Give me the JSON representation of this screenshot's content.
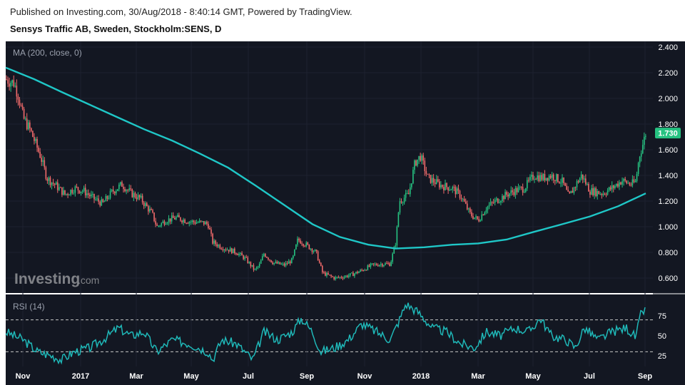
{
  "header": {
    "published": "Published on Investing.com, 30/Aug/2018 - 8:40:14 GMT, Powered by TradingView.",
    "instrument": "Sensys Traffic AB, Sweden, Stockholm:SENS, D"
  },
  "watermark": {
    "brand": "Investing",
    "suffix": ".com"
  },
  "colors": {
    "background": "#131722",
    "up": "#26c281",
    "down": "#ef6a6a",
    "ma": "#1fc7c7",
    "rsi": "#1fb8b8",
    "last_price_bg": "#26c281"
  },
  "chart_data": [
    {
      "type": "candlestick",
      "label": "MA (200, close, 0)",
      "y_ticks": [
        "2.400",
        "2.200",
        "2.000",
        "1.800",
        "1.600",
        "1.400",
        "1.200",
        "1.000",
        "0.800",
        "0.600"
      ],
      "ylim": [
        0.5,
        2.44
      ],
      "last_price_label": "1.730",
      "last_price": 1.73,
      "x_ticks": [
        "Nov",
        "2017",
        "Mar",
        "May",
        "Jul",
        "Sep",
        "Nov",
        "2018",
        "Mar",
        "May",
        "Jul",
        "Sep"
      ],
      "x_range": [
        "2016-10-01",
        "2018-08-31"
      ],
      "close_path": [
        [
          "2016-10-01",
          2.15
        ],
        [
          "2016-10-10",
          2.12
        ],
        [
          "2016-10-15",
          2.02
        ],
        [
          "2016-10-20",
          1.85
        ],
        [
          "2016-10-28",
          1.75
        ],
        [
          "2016-11-08",
          1.55
        ],
        [
          "2016-11-15",
          1.38
        ],
        [
          "2016-11-25",
          1.32
        ],
        [
          "2016-12-05",
          1.25
        ],
        [
          "2016-12-15",
          1.3
        ],
        [
          "2016-12-25",
          1.28
        ],
        [
          "2017-01-05",
          1.22
        ],
        [
          "2017-01-15",
          1.18
        ],
        [
          "2017-01-25",
          1.27
        ],
        [
          "2017-02-05",
          1.33
        ],
        [
          "2017-02-15",
          1.26
        ],
        [
          "2017-02-25",
          1.22
        ],
        [
          "2017-03-10",
          1.1
        ],
        [
          "2017-03-15",
          1.0
        ],
        [
          "2017-03-25",
          1.05
        ],
        [
          "2017-04-05",
          1.07
        ],
        [
          "2017-04-20",
          1.04
        ],
        [
          "2017-05-05",
          1.03
        ],
        [
          "2017-05-10",
          1.02
        ],
        [
          "2017-05-15",
          0.88
        ],
        [
          "2017-05-25",
          0.84
        ],
        [
          "2017-06-10",
          0.8
        ],
        [
          "2017-06-20",
          0.75
        ],
        [
          "2017-06-30",
          0.66
        ],
        [
          "2017-07-05",
          0.7
        ],
        [
          "2017-07-10",
          0.79
        ],
        [
          "2017-07-20",
          0.72
        ],
        [
          "2017-08-01",
          0.7
        ],
        [
          "2017-08-10",
          0.74
        ],
        [
          "2017-08-16",
          0.9
        ],
        [
          "2017-08-25",
          0.86
        ],
        [
          "2017-09-05",
          0.8
        ],
        [
          "2017-09-12",
          0.64
        ],
        [
          "2017-09-25",
          0.6
        ],
        [
          "2017-10-05",
          0.61
        ],
        [
          "2017-10-15",
          0.63
        ],
        [
          "2017-10-25",
          0.66
        ],
        [
          "2017-11-05",
          0.7
        ],
        [
          "2017-11-15",
          0.71
        ],
        [
          "2017-11-25",
          0.71
        ],
        [
          "2017-12-01",
          0.88
        ],
        [
          "2017-12-05",
          1.2
        ],
        [
          "2017-12-15",
          1.25
        ],
        [
          "2017-12-22",
          1.5
        ],
        [
          "2017-12-28",
          1.55
        ],
        [
          "2018-01-05",
          1.38
        ],
        [
          "2018-01-20",
          1.32
        ],
        [
          "2018-02-01",
          1.3
        ],
        [
          "2018-02-10",
          1.24
        ],
        [
          "2018-02-20",
          1.1
        ],
        [
          "2018-03-01",
          1.05
        ],
        [
          "2018-03-10",
          1.15
        ],
        [
          "2018-03-20",
          1.2
        ],
        [
          "2018-04-01",
          1.25
        ],
        [
          "2018-04-10",
          1.28
        ],
        [
          "2018-04-20",
          1.3
        ],
        [
          "2018-05-01",
          1.4
        ],
        [
          "2018-05-10",
          1.38
        ],
        [
          "2018-05-20",
          1.4
        ],
        [
          "2018-06-01",
          1.35
        ],
        [
          "2018-06-08",
          1.23
        ],
        [
          "2018-06-15",
          1.32
        ],
        [
          "2018-06-22",
          1.4
        ],
        [
          "2018-07-01",
          1.28
        ],
        [
          "2018-07-15",
          1.26
        ],
        [
          "2018-07-25",
          1.3
        ],
        [
          "2018-08-05",
          1.36
        ],
        [
          "2018-08-15",
          1.33
        ],
        [
          "2018-08-20",
          1.35
        ],
        [
          "2018-08-24",
          1.55
        ],
        [
          "2018-08-28",
          1.65
        ],
        [
          "2018-08-31",
          1.73
        ]
      ],
      "ma_path": [
        [
          "2016-10-01",
          2.24
        ],
        [
          "2016-11-01",
          2.15
        ],
        [
          "2016-12-01",
          2.05
        ],
        [
          "2017-01-01",
          1.95
        ],
        [
          "2017-02-01",
          1.85
        ],
        [
          "2017-03-01",
          1.76
        ],
        [
          "2017-04-01",
          1.67
        ],
        [
          "2017-05-01",
          1.57
        ],
        [
          "2017-06-01",
          1.46
        ],
        [
          "2017-07-01",
          1.32
        ],
        [
          "2017-08-01",
          1.17
        ],
        [
          "2017-09-01",
          1.02
        ],
        [
          "2017-10-01",
          0.92
        ],
        [
          "2017-11-01",
          0.86
        ],
        [
          "2017-12-01",
          0.83
        ],
        [
          "2018-01-01",
          0.84
        ],
        [
          "2018-02-01",
          0.86
        ],
        [
          "2018-03-01",
          0.87
        ],
        [
          "2018-04-01",
          0.9
        ],
        [
          "2018-05-01",
          0.96
        ],
        [
          "2018-06-01",
          1.02
        ],
        [
          "2018-07-01",
          1.08
        ],
        [
          "2018-08-01",
          1.16
        ],
        [
          "2018-08-31",
          1.26
        ]
      ]
    },
    {
      "type": "line",
      "label": "RSI (14)",
      "y_ticks": [
        "75",
        "50",
        "25"
      ],
      "ylim": [
        10,
        95
      ],
      "reference_levels": [
        70,
        30
      ],
      "rsi_path": [
        [
          "2016-10-01",
          55
        ],
        [
          "2016-10-20",
          45
        ],
        [
          "2016-11-05",
          30
        ],
        [
          "2016-11-20",
          25
        ],
        [
          "2016-12-01",
          20
        ],
        [
          "2016-12-15",
          30
        ],
        [
          "2017-01-01",
          35
        ],
        [
          "2017-01-15",
          45
        ],
        [
          "2017-02-01",
          60
        ],
        [
          "2017-02-15",
          50
        ],
        [
          "2017-03-01",
          55
        ],
        [
          "2017-03-15",
          30
        ],
        [
          "2017-04-01",
          45
        ],
        [
          "2017-04-20",
          40
        ],
        [
          "2017-05-10",
          30
        ],
        [
          "2017-05-15",
          20
        ],
        [
          "2017-05-25",
          45
        ],
        [
          "2017-06-10",
          40
        ],
        [
          "2017-06-28",
          20
        ],
        [
          "2017-07-10",
          55
        ],
        [
          "2017-07-25",
          45
        ],
        [
          "2017-08-10",
          55
        ],
        [
          "2017-08-20",
          72
        ],
        [
          "2017-09-01",
          55
        ],
        [
          "2017-09-10",
          30
        ],
        [
          "2017-09-25",
          35
        ],
        [
          "2017-10-10",
          45
        ],
        [
          "2017-10-25",
          65
        ],
        [
          "2017-11-10",
          55
        ],
        [
          "2017-11-25",
          45
        ],
        [
          "2017-12-05",
          70
        ],
        [
          "2017-12-12",
          90
        ],
        [
          "2017-12-25",
          80
        ],
        [
          "2018-01-10",
          60
        ],
        [
          "2018-01-25",
          55
        ],
        [
          "2018-02-10",
          40
        ],
        [
          "2018-02-25",
          35
        ],
        [
          "2018-03-10",
          55
        ],
        [
          "2018-03-25",
          50
        ],
        [
          "2018-04-10",
          60
        ],
        [
          "2018-04-25",
          55
        ],
        [
          "2018-05-08",
          72
        ],
        [
          "2018-05-20",
          50
        ],
        [
          "2018-06-05",
          45
        ],
        [
          "2018-06-15",
          35
        ],
        [
          "2018-06-25",
          60
        ],
        [
          "2018-07-10",
          45
        ],
        [
          "2018-07-25",
          55
        ],
        [
          "2018-08-10",
          60
        ],
        [
          "2018-08-20",
          48
        ],
        [
          "2018-08-26",
          78
        ],
        [
          "2018-08-29",
          82
        ],
        [
          "2018-08-31",
          80
        ]
      ]
    }
  ]
}
